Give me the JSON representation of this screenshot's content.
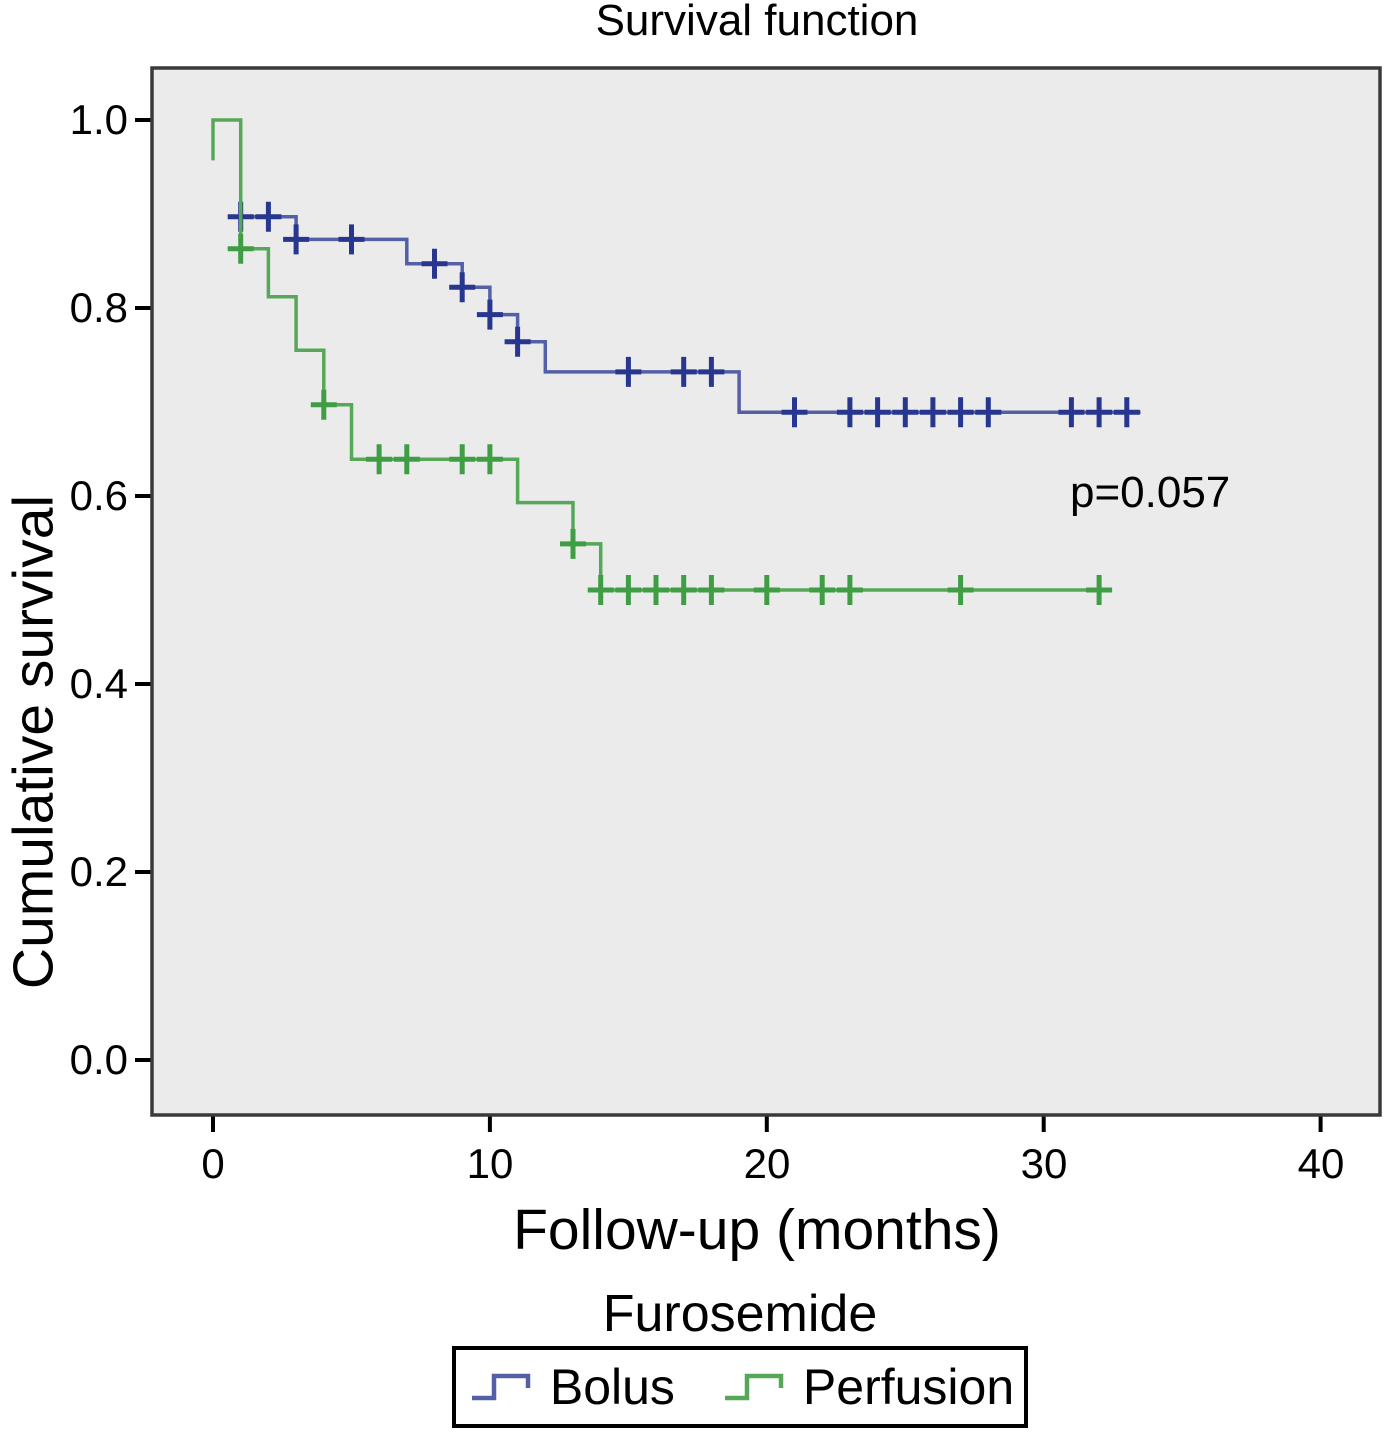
{
  "title": "Survival function",
  "annotation": {
    "p_value": "p=0.057"
  },
  "axes": {
    "x_label": "Follow-up (months)",
    "y_label": "Cumulative survival",
    "x_ticks": [
      "0",
      "10",
      "20",
      "30",
      "40"
    ],
    "y_ticks": [
      "1.0",
      "0.8",
      "0.6",
      "0.4",
      "0.2",
      "0.0"
    ]
  },
  "legend": {
    "title": "Furosemide",
    "items": [
      {
        "label": "Bolus",
        "line_color": "#5360a6",
        "marker_color": "#27368f"
      },
      {
        "label": "Perfusion",
        "line_color": "#57a758",
        "marker_color": "#3f9e44"
      }
    ]
  },
  "colors": {
    "plot_background": "#ebebeb",
    "frame_border": "#3a3a3a",
    "tick_color": "#000000"
  },
  "chart_data": {
    "type": "line",
    "subtype": "kaplan-meier-step",
    "title": "Survival function",
    "xlabel": "Follow-up (months)",
    "ylabel": "Cumulative survival",
    "xlim": [
      -2.2,
      42.1
    ],
    "ylim": [
      -0.058,
      1.055
    ],
    "x_tick_values": [
      0,
      10,
      20,
      30,
      40
    ],
    "y_tick_values": [
      1.0,
      0.8,
      0.6,
      0.4,
      0.2,
      0.0
    ],
    "grid": false,
    "legend_position": "bottom",
    "annotation": {
      "text": "p=0.057",
      "x": 31,
      "y": 0.6
    },
    "series": [
      {
        "name": "Bolus",
        "line_color": "#5360a6",
        "marker_color": "#27368f",
        "steps": [
          [
            0.6,
            0.897
          ],
          [
            3,
            0.897
          ],
          [
            3,
            0.873
          ],
          [
            7,
            0.873
          ],
          [
            7,
            0.847
          ],
          [
            9,
            0.847
          ],
          [
            9,
            0.822
          ],
          [
            10,
            0.822
          ],
          [
            10,
            0.793
          ],
          [
            11,
            0.793
          ],
          [
            11,
            0.764
          ],
          [
            12,
            0.764
          ],
          [
            12,
            0.732
          ],
          [
            19,
            0.732
          ],
          [
            19,
            0.689
          ],
          [
            33.5,
            0.689
          ]
        ],
        "censors": [
          [
            1,
            0.897
          ],
          [
            2,
            0.897
          ],
          [
            3,
            0.873
          ],
          [
            5,
            0.873
          ],
          [
            8,
            0.847
          ],
          [
            9,
            0.822
          ],
          [
            10,
            0.793
          ],
          [
            11,
            0.764
          ],
          [
            15,
            0.732
          ],
          [
            17,
            0.732
          ],
          [
            18,
            0.732
          ],
          [
            21,
            0.689
          ],
          [
            23,
            0.689
          ],
          [
            24,
            0.689
          ],
          [
            25,
            0.689
          ],
          [
            26,
            0.689
          ],
          [
            27,
            0.689
          ],
          [
            28,
            0.689
          ],
          [
            31,
            0.689
          ],
          [
            32,
            0.689
          ],
          [
            33,
            0.689
          ]
        ]
      },
      {
        "name": "Perfusion",
        "line_color": "#57a758",
        "marker_color": "#3f9e44",
        "steps": [
          [
            0,
            0.957
          ],
          [
            0,
            1.0
          ],
          [
            1,
            1.0
          ],
          [
            1,
            0.863
          ],
          [
            2,
            0.863
          ],
          [
            2,
            0.812
          ],
          [
            3,
            0.812
          ],
          [
            3,
            0.755
          ],
          [
            4,
            0.755
          ],
          [
            4,
            0.697
          ],
          [
            5,
            0.697
          ],
          [
            5,
            0.639
          ],
          [
            11,
            0.639
          ],
          [
            11,
            0.593
          ],
          [
            13,
            0.593
          ],
          [
            13,
            0.549
          ],
          [
            14,
            0.549
          ],
          [
            14,
            0.5
          ],
          [
            32.3,
            0.5
          ]
        ],
        "censors": [
          [
            1,
            0.863
          ],
          [
            4,
            0.697
          ],
          [
            6,
            0.639
          ],
          [
            7,
            0.639
          ],
          [
            9,
            0.639
          ],
          [
            10,
            0.639
          ],
          [
            13,
            0.549
          ],
          [
            14,
            0.5
          ],
          [
            15,
            0.5
          ],
          [
            16,
            0.5
          ],
          [
            17,
            0.5
          ],
          [
            18,
            0.5
          ],
          [
            20,
            0.5
          ],
          [
            22,
            0.5
          ],
          [
            23,
            0.5
          ],
          [
            27,
            0.5
          ],
          [
            32,
            0.5
          ]
        ]
      }
    ]
  }
}
